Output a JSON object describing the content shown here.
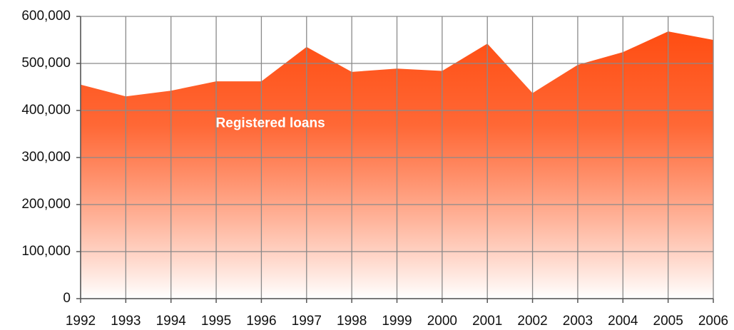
{
  "chart_data": {
    "type": "area",
    "annotation": "Registered loans",
    "categories": [
      "1992",
      "1993",
      "1994",
      "1995",
      "1996",
      "1997",
      "1998",
      "1999",
      "2000",
      "2001",
      "2002",
      "2003",
      "2004",
      "2005",
      "2006"
    ],
    "series": [
      {
        "name": "Registered loans",
        "color": "#ff4d12",
        "values": [
          455000,
          430000,
          442000,
          462000,
          462000,
          535000,
          482000,
          489000,
          484000,
          542000,
          437000,
          497000,
          524000,
          568000,
          550000
        ]
      }
    ],
    "ylim": [
      0,
      600000
    ],
    "yticks": [
      0,
      {
        "value": 100000,
        "label": "100,000"
      },
      {
        "value": 200000,
        "label": "200,000"
      },
      {
        "value": 300000,
        "label": "300,000"
      },
      {
        "value": 400000,
        "label": "400,000"
      },
      {
        "value": 500000,
        "label": "500,000"
      },
      {
        "value": 600000,
        "label": "600,000"
      }
    ],
    "grid": true
  }
}
